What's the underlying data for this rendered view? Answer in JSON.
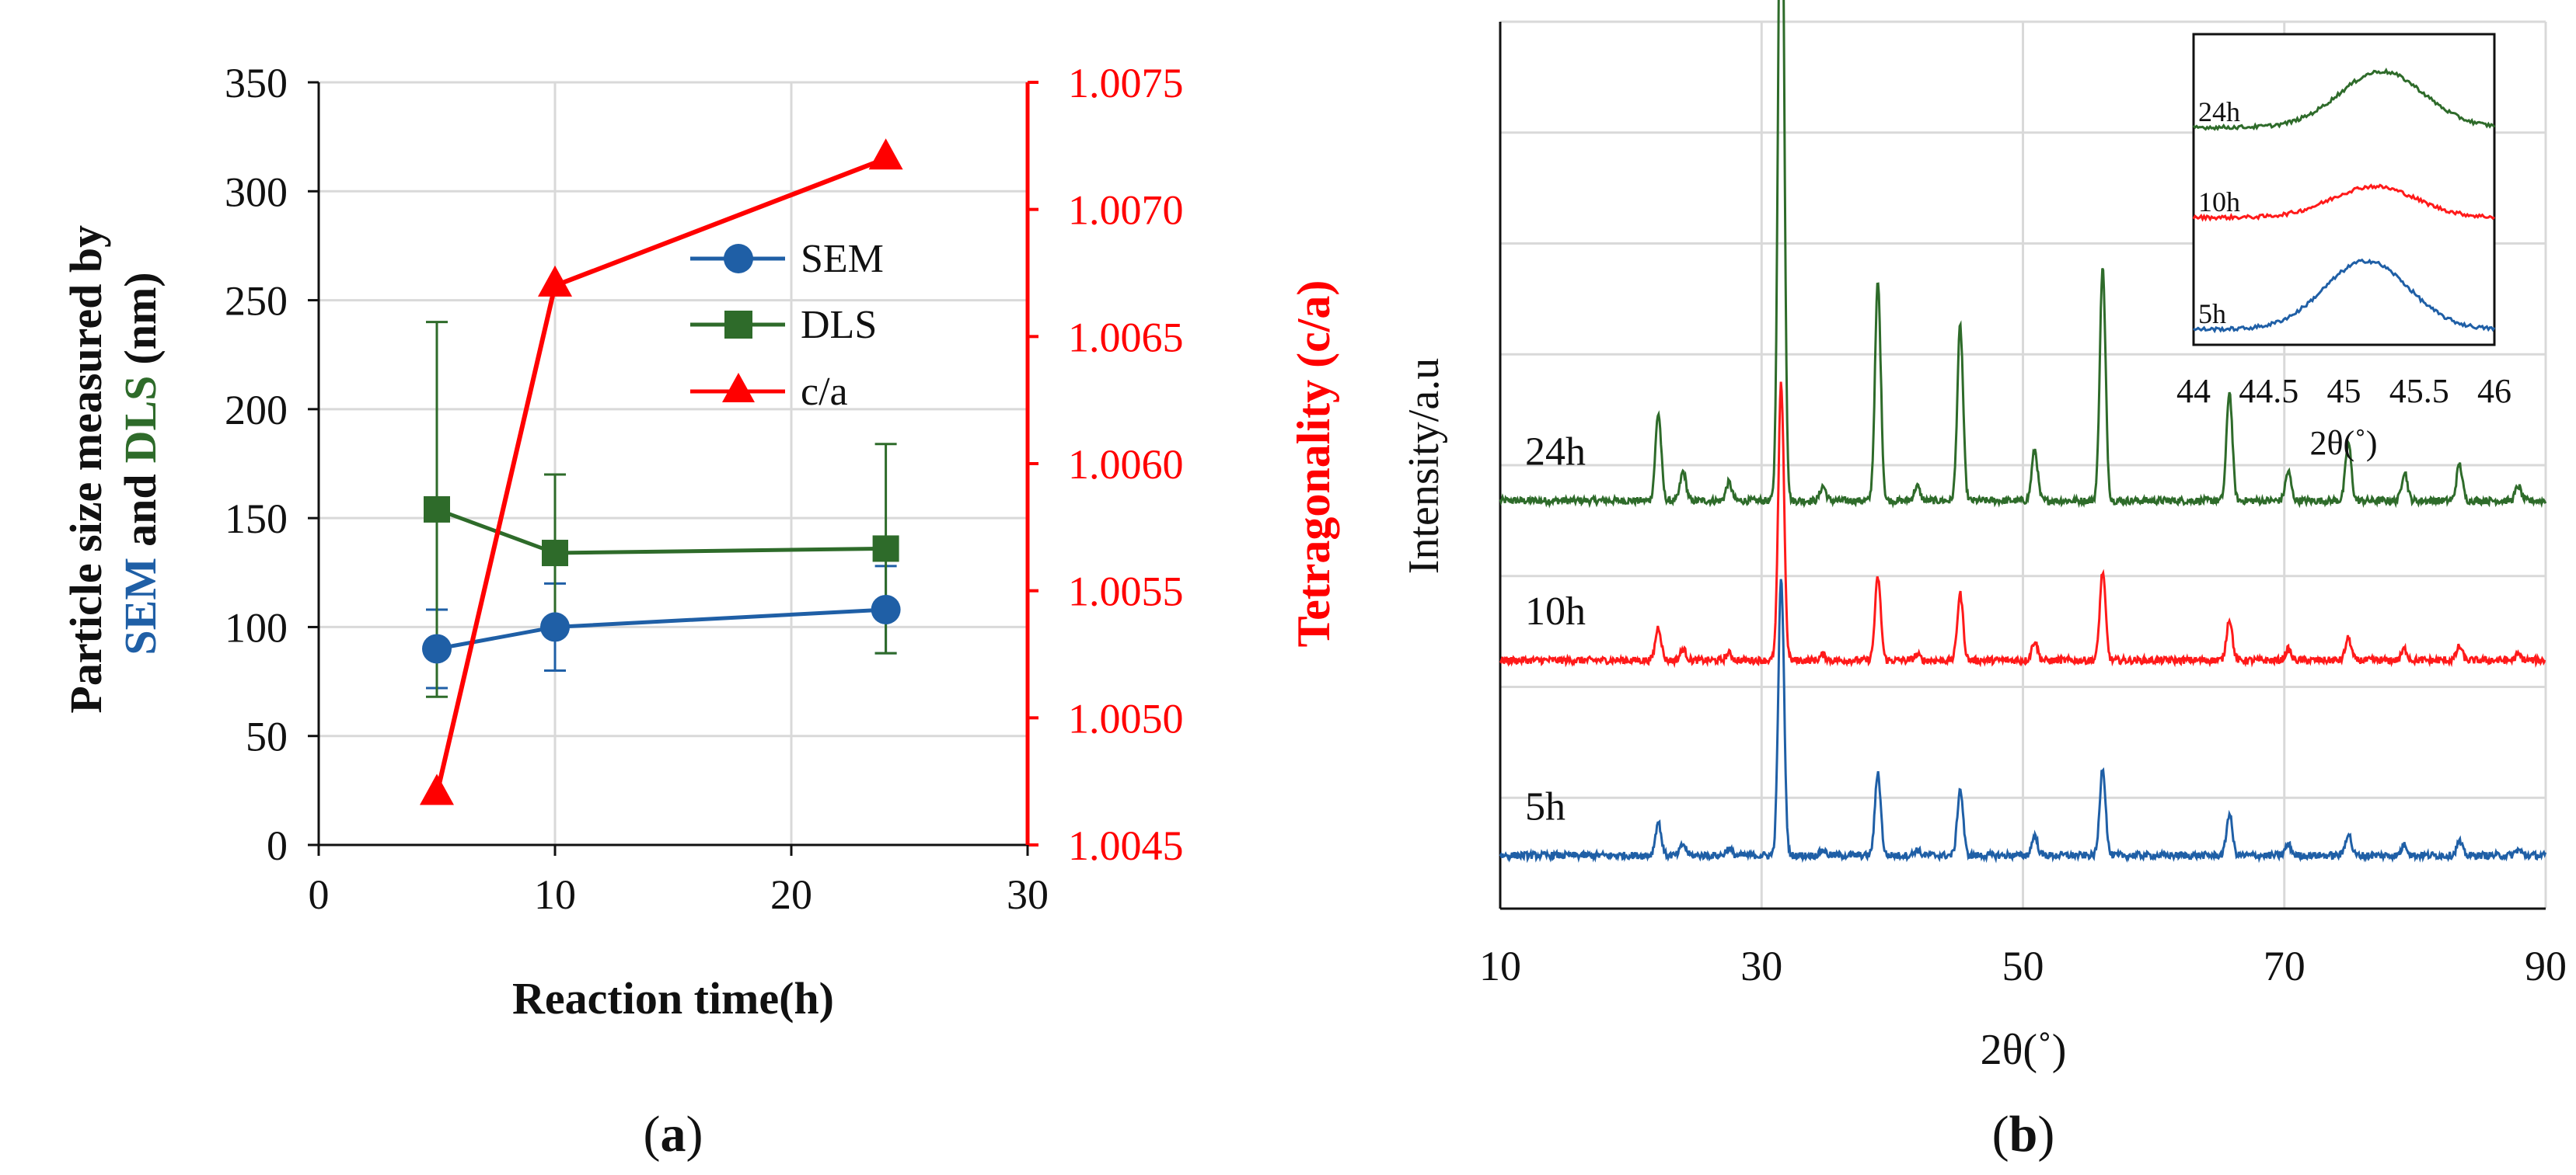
{
  "colors": {
    "sem": "#1f5fa6",
    "dls": "#2e6b2a",
    "ca": "#ff0000",
    "black": "#111111",
    "grid": "#d9d9d9",
    "trace_24h": "#2e6b2a",
    "trace_10h": "#ff1a1a",
    "trace_5h": "#1f5fa6"
  },
  "panel_labels": {
    "a": "(a)",
    "b": "(b)"
  },
  "chart_data": [
    {
      "type": "line",
      "title": "",
      "xlabel": "Reaction time(h)",
      "ylabel_parts": [
        "Particle size measured by",
        "SEM",
        "and",
        "DLS",
        "(nm)"
      ],
      "y2label": "Tetragonality (c/a)",
      "xlim": [
        0,
        30
      ],
      "ylim": [
        0,
        350
      ],
      "y2lim": [
        1.0045,
        1.0075
      ],
      "xticks": [
        0,
        10,
        20,
        30
      ],
      "yticks": [
        0,
        50,
        100,
        150,
        200,
        250,
        300,
        350
      ],
      "y2ticks": [
        "1.0045",
        "1.0050",
        "1.0055",
        "1.0060",
        "1.0065",
        "1.0070",
        "1.0075"
      ],
      "grid": true,
      "legend_position": "upper-middle",
      "series": [
        {
          "name": "SEM",
          "axis": "left",
          "marker": "circle",
          "x": [
            5,
            10,
            24
          ],
          "y": [
            90,
            100,
            108
          ],
          "err": [
            18,
            20,
            20
          ]
        },
        {
          "name": "DLS",
          "axis": "left",
          "marker": "square",
          "x": [
            5,
            10,
            24
          ],
          "y": [
            154,
            134,
            136
          ],
          "err": [
            86,
            36,
            48
          ]
        },
        {
          "name": "c/a",
          "axis": "right",
          "marker": "triangle",
          "x": [
            5,
            10,
            24
          ],
          "y": [
            1.0047,
            1.0067,
            1.0072
          ]
        }
      ]
    },
    {
      "type": "line",
      "title": "",
      "xlabel": "2θ(˚)",
      "ylabel": "Intensity/a.u",
      "xlim": [
        10,
        90
      ],
      "xticks": [
        10,
        30,
        50,
        70,
        90
      ],
      "grid": true,
      "series": [
        {
          "name": "24h",
          "offset": 0.46,
          "scale": 1.0
        },
        {
          "name": "10h",
          "offset": 0.28,
          "scale": 0.38
        },
        {
          "name": "5h",
          "offset": 0.06,
          "scale": 0.38
        }
      ],
      "peaks": [
        {
          "pos": 22.1,
          "height": 0.12
        },
        {
          "pos": 24.0,
          "height": 0.04
        },
        {
          "pos": 27.5,
          "height": 0.025
        },
        {
          "pos": 31.5,
          "height": 1.0
        },
        {
          "pos": 34.7,
          "height": 0.02
        },
        {
          "pos": 38.9,
          "height": 0.3
        },
        {
          "pos": 41.9,
          "height": 0.02
        },
        {
          "pos": 45.2,
          "height": 0.24
        },
        {
          "pos": 50.9,
          "height": 0.07
        },
        {
          "pos": 56.1,
          "height": 0.32
        },
        {
          "pos": 65.8,
          "height": 0.15
        },
        {
          "pos": 70.3,
          "height": 0.04
        },
        {
          "pos": 74.9,
          "height": 0.08
        },
        {
          "pos": 79.2,
          "height": 0.04
        },
        {
          "pos": 83.4,
          "height": 0.05
        },
        {
          "pos": 87.9,
          "height": 0.02
        }
      ],
      "inset": {
        "xlabel": "2θ(˚)",
        "xlim": [
          44,
          46
        ],
        "xticks": [
          "44",
          "44.5",
          "45",
          "45.5",
          "46"
        ],
        "series": [
          {
            "name": "24h",
            "center": 45.25,
            "height": 0.18,
            "base": 0.7
          },
          {
            "name": "10h",
            "center": 45.2,
            "height": 0.1,
            "base": 0.41
          },
          {
            "name": "5h",
            "center": 45.15,
            "height": 0.22,
            "base": 0.05
          }
        ]
      }
    }
  ]
}
